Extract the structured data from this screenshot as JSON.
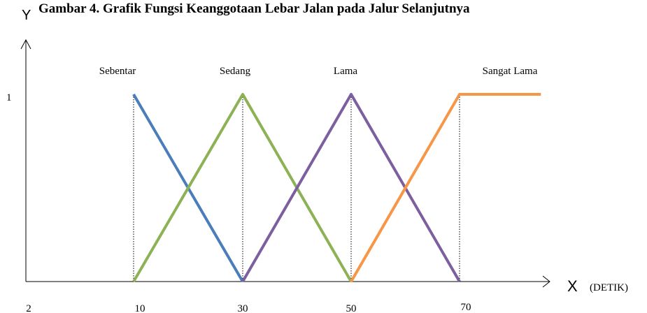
{
  "chart_data": {
    "type": "line",
    "title": "Gambar 4. Grafik Fungsi Keanggotaan Lebar Jalan pada Jalur Selanjutnya",
    "ylabel": "Y",
    "xlabel": "X",
    "xunit": "(DETIK)",
    "x_ticks": [
      "2",
      "10",
      "30",
      "50",
      "70"
    ],
    "y_ticks": [
      "1"
    ],
    "ylim": [
      0,
      1
    ],
    "grid": false,
    "legend": "none",
    "series": [
      {
        "name": "Sebentar",
        "color": "#4a7ebb",
        "points": [
          [
            10,
            1
          ],
          [
            30,
            0
          ]
        ]
      },
      {
        "name": "Sedang",
        "color": "#8db255",
        "points": [
          [
            10,
            0
          ],
          [
            30,
            1
          ],
          [
            50,
            0
          ]
        ]
      },
      {
        "name": "Lama",
        "color": "#7d5fa0",
        "points": [
          [
            30,
            0
          ],
          [
            50,
            1
          ],
          [
            70,
            0
          ]
        ]
      },
      {
        "name": "Sangat Lama",
        "color": "#f79646",
        "points": [
          [
            50,
            0
          ],
          [
            70,
            1
          ],
          [
            85,
            1
          ]
        ]
      }
    ],
    "guides_at": [
      10,
      30,
      50,
      70
    ]
  }
}
